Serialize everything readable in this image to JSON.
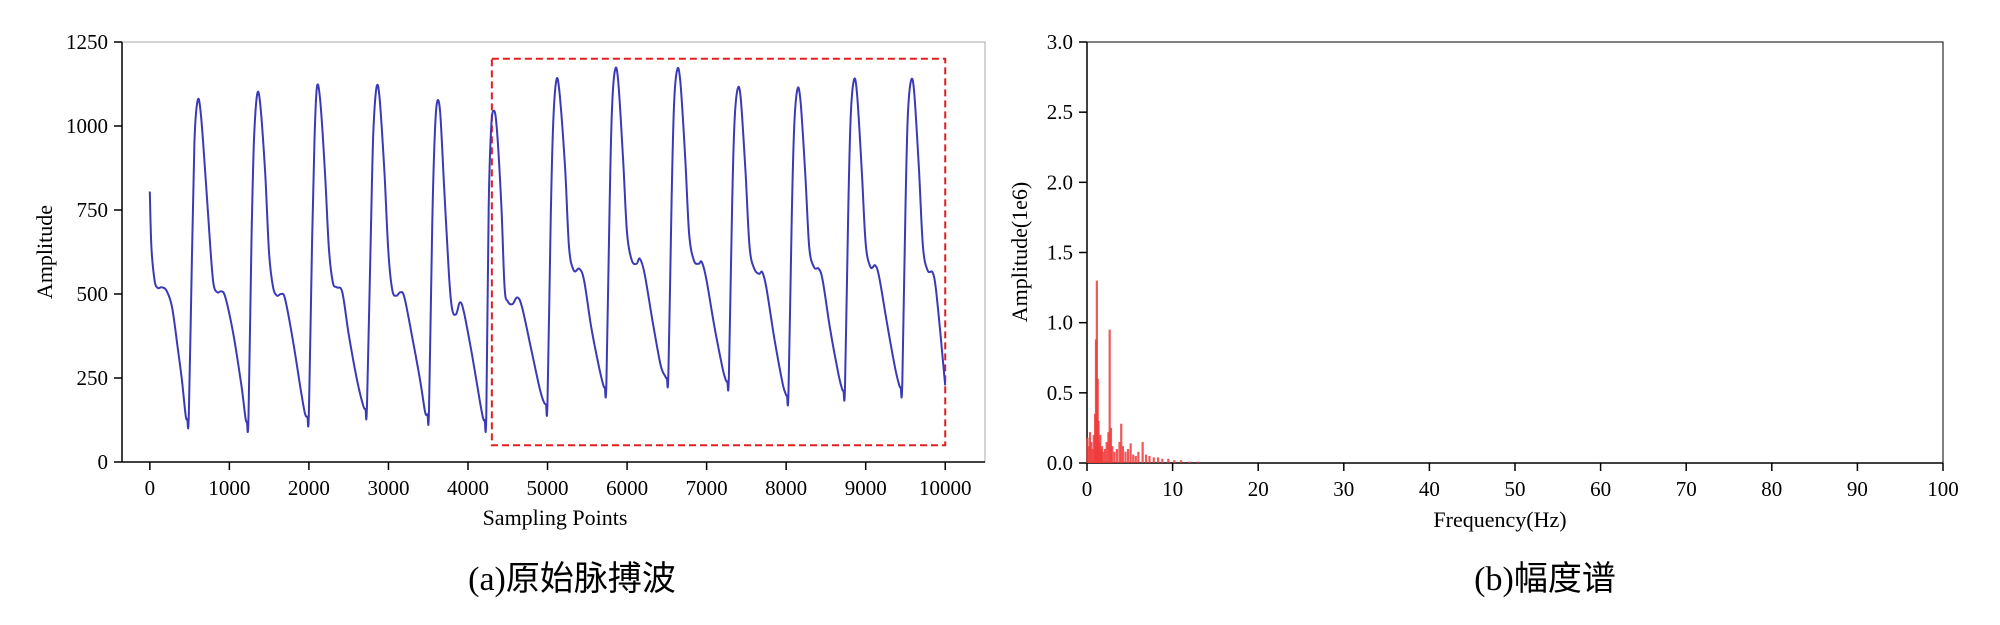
{
  "chart_data": [
    {
      "type": "line",
      "caption": "(a)原始脉搏波",
      "xlabel": "Sampling Points",
      "ylabel": "Amplitude",
      "xlim": [
        -350,
        10500
      ],
      "ylim": [
        0,
        1250
      ],
      "xticks": [
        0,
        1000,
        2000,
        3000,
        4000,
        5000,
        6000,
        7000,
        8000,
        9000,
        10000
      ],
      "yticks": [
        0,
        250,
        500,
        750,
        1000,
        1250
      ],
      "series_color": "#3a3ab8",
      "highlight_color": "#e02020",
      "highlight_box": {
        "x": [
          4300,
          10000
        ],
        "y": [
          50,
          1200
        ]
      },
      "series": [
        {
          "values": [
            [
              0,
              805
            ],
            [
              20,
              640
            ],
            [
              60,
              540
            ],
            [
              100,
              518
            ],
            [
              150,
              520
            ],
            [
              210,
              510
            ],
            [
              280,
              460
            ],
            [
              350,
              340
            ],
            [
              400,
              250
            ],
            [
              450,
              140
            ],
            [
              470,
              128
            ],
            [
              490,
              140
            ],
            [
              530,
              620
            ],
            [
              560,
              950
            ],
            [
              600,
              1075
            ],
            [
              640,
              1040
            ],
            [
              700,
              850
            ],
            [
              760,
              640
            ],
            [
              800,
              530
            ],
            [
              850,
              505
            ],
            [
              900,
              508
            ],
            [
              950,
              490
            ],
            [
              1050,
              380
            ],
            [
              1150,
              230
            ],
            [
              1200,
              135
            ],
            [
              1220,
              120
            ],
            [
              1240,
              135
            ],
            [
              1280,
              680
            ],
            [
              1310,
              960
            ],
            [
              1350,
              1095
            ],
            [
              1390,
              1060
            ],
            [
              1450,
              860
            ],
            [
              1500,
              620
            ],
            [
              1550,
              520
            ],
            [
              1600,
              495
            ],
            [
              1650,
              500
            ],
            [
              1700,
              485
            ],
            [
              1800,
              360
            ],
            [
              1900,
              210
            ],
            [
              1950,
              145
            ],
            [
              1980,
              135
            ],
            [
              2000,
              148
            ],
            [
              2040,
              660
            ],
            [
              2070,
              960
            ],
            [
              2100,
              1115
            ],
            [
              2140,
              1080
            ],
            [
              2200,
              870
            ],
            [
              2250,
              640
            ],
            [
              2300,
              535
            ],
            [
              2350,
              520
            ],
            [
              2420,
              505
            ],
            [
              2500,
              380
            ],
            [
              2600,
              250
            ],
            [
              2680,
              170
            ],
            [
              2710,
              158
            ],
            [
              2730,
              170
            ],
            [
              2780,
              700
            ],
            [
              2810,
              980
            ],
            [
              2850,
              1115
            ],
            [
              2890,
              1080
            ],
            [
              2950,
              860
            ],
            [
              3000,
              620
            ],
            [
              3050,
              510
            ],
            [
              3100,
              495
            ],
            [
              3150,
              505
            ],
            [
              3200,
              490
            ],
            [
              3300,
              370
            ],
            [
              3400,
              240
            ],
            [
              3460,
              150
            ],
            [
              3490,
              142
            ],
            [
              3510,
              155
            ],
            [
              3550,
              700
            ],
            [
              3580,
              960
            ],
            [
              3610,
              1070
            ],
            [
              3650,
              1040
            ],
            [
              3700,
              820
            ],
            [
              3760,
              560
            ],
            [
              3800,
              455
            ],
            [
              3850,
              440
            ],
            [
              3900,
              475
            ],
            [
              3950,
              445
            ],
            [
              4050,
              320
            ],
            [
              4150,
              180
            ],
            [
              4190,
              130
            ],
            [
              4210,
              125
            ],
            [
              4230,
              140
            ],
            [
              4260,
              760
            ],
            [
              4290,
              990
            ],
            [
              4320,
              1045
            ],
            [
              4360,
              1000
            ],
            [
              4420,
              760
            ],
            [
              4460,
              520
            ],
            [
              4500,
              478
            ],
            [
              4560,
              470
            ],
            [
              4620,
              490
            ],
            [
              4680,
              460
            ],
            [
              4800,
              330
            ],
            [
              4900,
              220
            ],
            [
              4950,
              180
            ],
            [
              4980,
              172
            ],
            [
              5000,
              180
            ],
            [
              5040,
              720
            ],
            [
              5070,
              1000
            ],
            [
              5110,
              1135
            ],
            [
              5150,
              1100
            ],
            [
              5220,
              880
            ],
            [
              5270,
              640
            ],
            [
              5330,
              570
            ],
            [
              5400,
              575
            ],
            [
              5460,
              540
            ],
            [
              5550,
              400
            ],
            [
              5650,
              280
            ],
            [
              5700,
              230
            ],
            [
              5720,
              222
            ],
            [
              5740,
              235
            ],
            [
              5780,
              760
            ],
            [
              5810,
              1050
            ],
            [
              5850,
              1168
            ],
            [
              5890,
              1130
            ],
            [
              5950,
              900
            ],
            [
              6000,
              680
            ],
            [
              6060,
              600
            ],
            [
              6120,
              590
            ],
            [
              6160,
              605
            ],
            [
              6220,
              560
            ],
            [
              6320,
              420
            ],
            [
              6420,
              290
            ],
            [
              6480,
              255
            ],
            [
              6500,
              250
            ],
            [
              6520,
              265
            ],
            [
              6560,
              780
            ],
            [
              6590,
              1060
            ],
            [
              6630,
              1168
            ],
            [
              6670,
              1130
            ],
            [
              6730,
              910
            ],
            [
              6780,
              680
            ],
            [
              6840,
              600
            ],
            [
              6900,
              590
            ],
            [
              6940,
              595
            ],
            [
              7000,
              540
            ],
            [
              7100,
              400
            ],
            [
              7200,
              280
            ],
            [
              7240,
              245
            ],
            [
              7260,
              240
            ],
            [
              7280,
              255
            ],
            [
              7320,
              760
            ],
            [
              7350,
              1010
            ],
            [
              7390,
              1110
            ],
            [
              7430,
              1080
            ],
            [
              7490,
              860
            ],
            [
              7540,
              640
            ],
            [
              7600,
              575
            ],
            [
              7660,
              560
            ],
            [
              7700,
              565
            ],
            [
              7750,
              520
            ],
            [
              7850,
              370
            ],
            [
              7950,
              240
            ],
            [
              7990,
              205
            ],
            [
              8010,
              198
            ],
            [
              8030,
              210
            ],
            [
              8070,
              720
            ],
            [
              8100,
              990
            ],
            [
              8140,
              1108
            ],
            [
              8180,
              1075
            ],
            [
              8240,
              860
            ],
            [
              8290,
              640
            ],
            [
              8350,
              580
            ],
            [
              8410,
              575
            ],
            [
              8460,
              540
            ],
            [
              8550,
              400
            ],
            [
              8650,
              270
            ],
            [
              8700,
              220
            ],
            [
              8720,
              212
            ],
            [
              8740,
              225
            ],
            [
              8780,
              740
            ],
            [
              8810,
              1020
            ],
            [
              8850,
              1135
            ],
            [
              8890,
              1100
            ],
            [
              8950,
              870
            ],
            [
              9000,
              650
            ],
            [
              9060,
              580
            ],
            [
              9120,
              585
            ],
            [
              9170,
              550
            ],
            [
              9270,
              410
            ],
            [
              9370,
              280
            ],
            [
              9420,
              230
            ],
            [
              9440,
              222
            ],
            [
              9460,
              235
            ],
            [
              9500,
              760
            ],
            [
              9530,
              1030
            ],
            [
              9570,
              1135
            ],
            [
              9610,
              1100
            ],
            [
              9670,
              870
            ],
            [
              9720,
              640
            ],
            [
              9780,
              570
            ],
            [
              9840,
              565
            ],
            [
              9880,
              520
            ],
            [
              9940,
              380
            ],
            [
              10000,
              228
            ]
          ]
        }
      ]
    },
    {
      "type": "bar",
      "caption": "(b)幅度谱",
      "xlabel": "Frequency(Hz)",
      "ylabel": "Amplitude(1e6)",
      "xlim": [
        0,
        100
      ],
      "ylim": [
        0,
        3.0
      ],
      "xticks": [
        0,
        10,
        20,
        30,
        40,
        50,
        60,
        70,
        80,
        90,
        100
      ],
      "yticks": [
        0.0,
        0.5,
        1.0,
        1.5,
        2.0,
        2.5,
        3.0
      ],
      "series_color": "#f03a3a",
      "x": [
        0.05,
        0.2,
        0.35,
        0.5,
        0.65,
        0.8,
        0.95,
        1.05,
        1.15,
        1.25,
        1.35,
        1.45,
        1.55,
        1.65,
        1.75,
        1.9,
        2.1,
        2.3,
        2.5,
        2.65,
        2.8,
        2.95,
        3.2,
        3.5,
        3.8,
        4.0,
        4.2,
        4.5,
        4.8,
        5.1,
        5.4,
        5.7,
        6.0,
        6.5,
        6.9,
        7.3,
        7.8,
        8.3,
        8.8,
        9.5,
        10.2,
        11.0,
        12.0,
        13.0
      ],
      "values": [
        0.18,
        0.12,
        0.22,
        0.15,
        0.1,
        0.2,
        0.35,
        0.88,
        1.3,
        0.6,
        0.3,
        0.15,
        0.2,
        0.1,
        0.12,
        0.08,
        0.1,
        0.15,
        0.22,
        0.95,
        0.25,
        0.12,
        0.08,
        0.1,
        0.15,
        0.28,
        0.12,
        0.08,
        0.1,
        0.14,
        0.06,
        0.05,
        0.08,
        0.15,
        0.06,
        0.05,
        0.04,
        0.04,
        0.03,
        0.03,
        0.02,
        0.02,
        0.01,
        0.01
      ]
    }
  ]
}
